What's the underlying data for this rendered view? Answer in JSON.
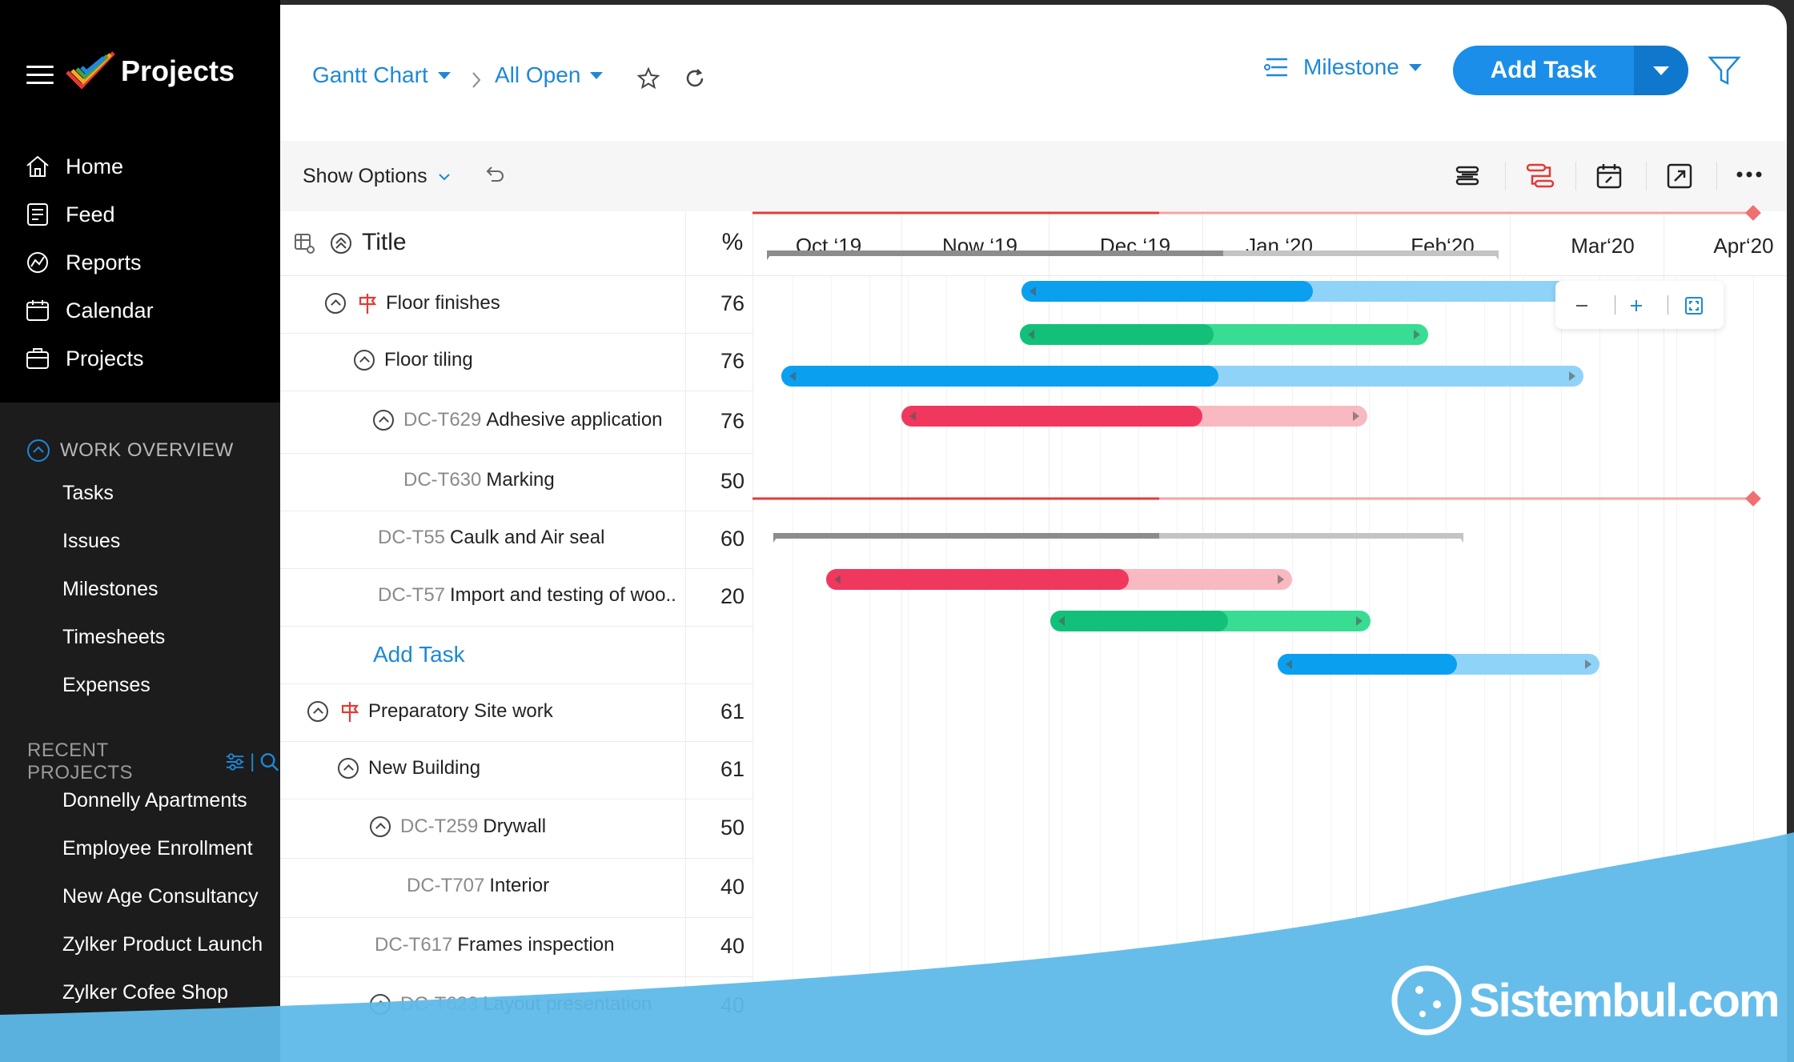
{
  "sidebar": {
    "title": "Projects",
    "nav": [
      {
        "label": "Home",
        "icon": "home-icon"
      },
      {
        "label": "Feed",
        "icon": "feed-icon"
      },
      {
        "label": "Reports",
        "icon": "reports-icon"
      },
      {
        "label": "Calendar",
        "icon": "calendar-icon"
      },
      {
        "label": "Projects",
        "icon": "projects-icon"
      }
    ],
    "work_overview": {
      "heading": "WORK OVERVIEW",
      "items": [
        "Tasks",
        "Issues",
        "Milestones",
        "Timesheets",
        "Expenses"
      ]
    },
    "recent_projects": {
      "heading": "RECENT PROJECTS",
      "items": [
        "Donnelly Apartments",
        "Employee Enrollment",
        "New Age Consultancy",
        "Zylker Product Launch",
        "Zylker Cofee Shop"
      ]
    }
  },
  "header": {
    "view": "Gantt Chart",
    "filter": "All Open",
    "milestone": "Milestone",
    "add_task": "Add Task"
  },
  "options": {
    "show_options": "Show Options"
  },
  "grid": {
    "title_col": "Title",
    "pct_col": "%",
    "months": [
      "Oct ‘19",
      "Now ‘19",
      "Dec ‘19",
      "Jan ‘20",
      "Feb‘20",
      "Mar‘20",
      "Apr‘20"
    ],
    "add_task": "Add Task",
    "rows": [
      {
        "code": "",
        "title": "Floor finishes",
        "pct": "76"
      },
      {
        "code": "",
        "title": "Floor tiling",
        "pct": "76"
      },
      {
        "code": "DC-T629",
        "title": "Adhesive application",
        "pct": "76"
      },
      {
        "code": "DC-T630",
        "title": "Marking",
        "pct": "50"
      },
      {
        "code": "DC-T55",
        "title": "Caulk and Air seal",
        "pct": "60"
      },
      {
        "code": "DC-T57",
        "title": "Import and testing of woo..",
        "pct": "20"
      },
      {
        "code": "",
        "title": "Preparatory Site work",
        "pct": "61"
      },
      {
        "code": "",
        "title": "New Building",
        "pct": "61"
      },
      {
        "code": "DC-T259",
        "title": "Drywall",
        "pct": "50"
      },
      {
        "code": "DC-T707",
        "title": "Interior",
        "pct": "40"
      },
      {
        "code": "DC-T617",
        "title": "Frames inspection",
        "pct": "40"
      },
      {
        "code": "DC-T623",
        "title": "Layout presentation",
        "pct": "40"
      }
    ]
  },
  "watermark": "Sistembul.com",
  "colors": {
    "accent": "#1a8ee8",
    "blue": "#0aa0ef",
    "green": "#13c07a",
    "red": "#f0385f",
    "milestone": "#e53935"
  }
}
